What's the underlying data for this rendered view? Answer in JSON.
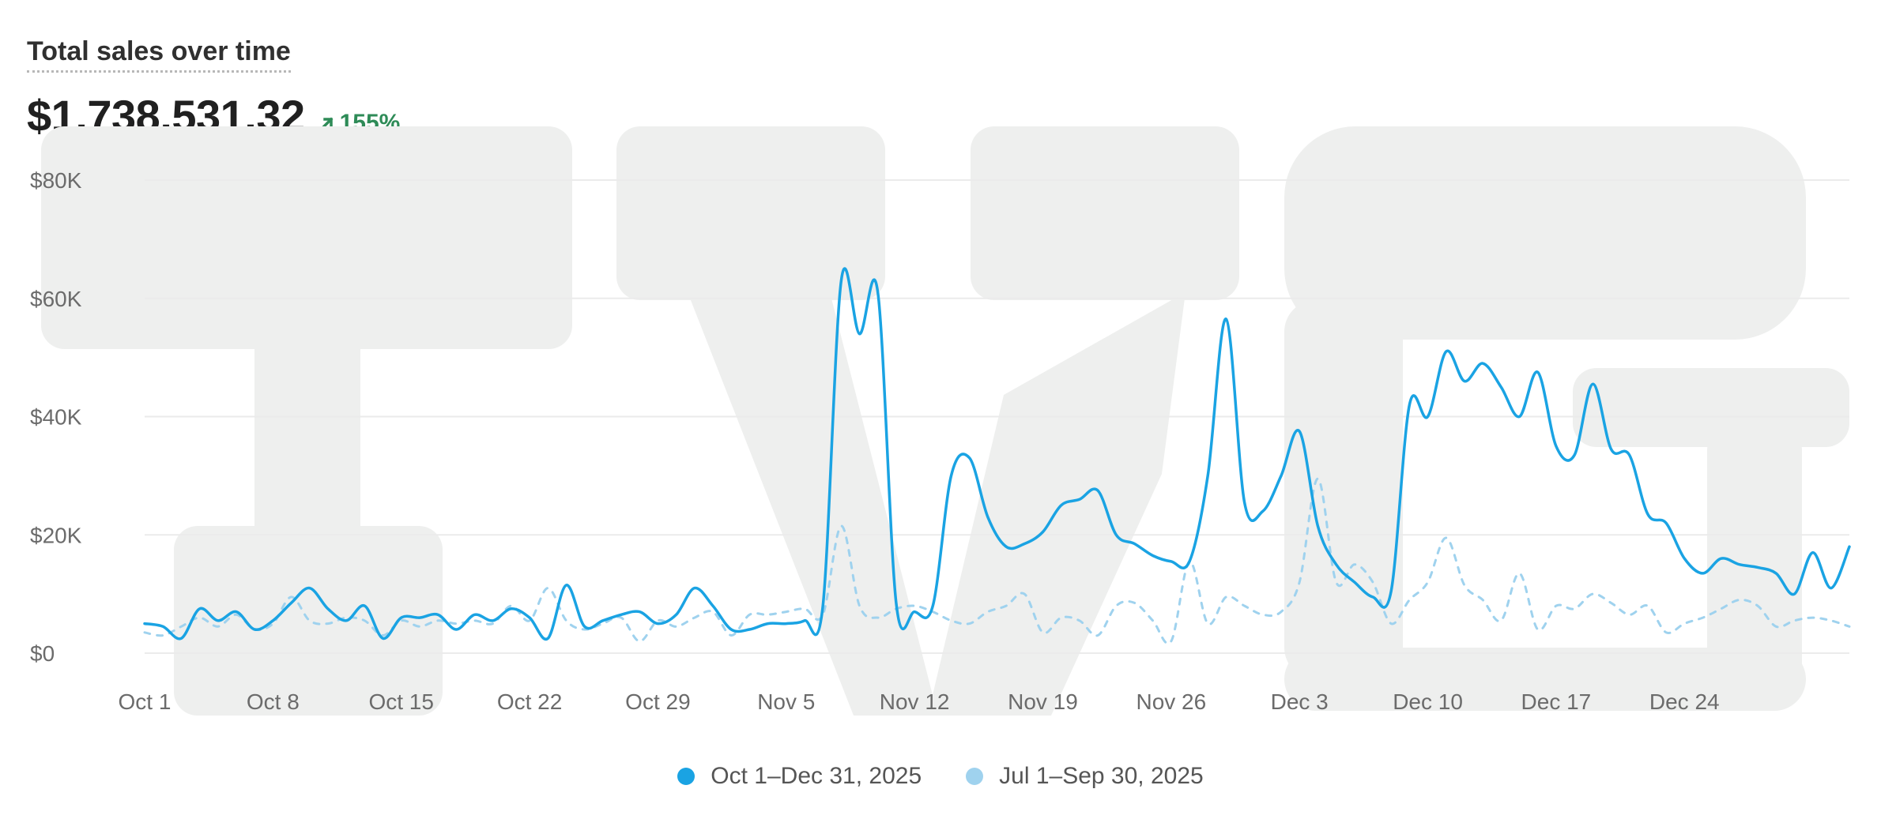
{
  "card": {
    "title": "Total sales over time",
    "total": "$1,738,531.32",
    "change": "155%",
    "change_color": "#2e8b57"
  },
  "colors": {
    "current": "#1aa3e3",
    "previous": "#9fd2ee",
    "grid": "#ebebeb",
    "watermark": "#eeefee"
  },
  "chart_data": {
    "type": "line",
    "ylim": [
      0,
      80000
    ],
    "yticks": [
      "$0",
      "$20K",
      "$40K",
      "$60K",
      "$80K"
    ],
    "xticks": [
      "Oct 1",
      "Oct 8",
      "Oct 15",
      "Oct 22",
      "Oct 29",
      "Nov 5",
      "Nov 12",
      "Nov 19",
      "Nov 26",
      "Dec 3",
      "Dec 10",
      "Dec 17",
      "Dec 24"
    ],
    "grid": true,
    "legend_position": "bottom",
    "series": [
      {
        "name": "Oct 1–Dec 31, 2025",
        "style": "solid",
        "values": [
          5000,
          4500,
          2500,
          7500,
          5500,
          7000,
          4000,
          5500,
          8500,
          11000,
          7500,
          5500,
          8000,
          2500,
          6000,
          6000,
          6500,
          4000,
          6500,
          5500,
          7500,
          6000,
          2500,
          11500,
          4500,
          5500,
          6500,
          7000,
          5000,
          6500,
          11000,
          8000,
          4000,
          4000,
          5000,
          5000,
          5500,
          8000,
          63000,
          54000,
          61000,
          8500,
          7000,
          8000,
          30000,
          33000,
          23000,
          18000,
          18500,
          20500,
          25000,
          26000,
          27500,
          20000,
          18500,
          16500,
          15500,
          15500,
          30000,
          56500,
          25500,
          24000,
          30000,
          37500,
          21500,
          15000,
          12000,
          9500,
          10500,
          42000,
          40000,
          51000,
          46000,
          49000,
          45000,
          40000,
          47500,
          35000,
          33500,
          45500,
          34500,
          33500,
          23500,
          22000,
          16000,
          13500,
          16000,
          15000,
          14500,
          13500,
          10000,
          17000,
          11000,
          18000
        ]
      },
      {
        "name": "Jul 1–Sep 30, 2025",
        "style": "dashed",
        "values": [
          3500,
          3000,
          4500,
          6000,
          4500,
          6500,
          4000,
          5000,
          9500,
          5500,
          5000,
          6000,
          5500,
          3000,
          5500,
          4500,
          5500,
          5000,
          5500,
          5000,
          8000,
          5500,
          11000,
          5500,
          4000,
          5000,
          6000,
          2000,
          5500,
          4500,
          6000,
          7000,
          3000,
          6500,
          6500,
          7000,
          7500,
          6500,
          21500,
          8000,
          6000,
          7500,
          8000,
          7000,
          5500,
          5000,
          7000,
          8000,
          10000,
          3500,
          6000,
          5500,
          3000,
          8000,
          8500,
          5500,
          2000,
          15500,
          5000,
          9500,
          8000,
          6500,
          7000,
          12000,
          29500,
          12000,
          15000,
          12000,
          5000,
          9000,
          12000,
          19500,
          11500,
          9000,
          5500,
          13500,
          4000,
          8000,
          7500,
          10000,
          8500,
          6500,
          8000,
          3500,
          5000,
          6000,
          7500,
          9000,
          8000,
          4500,
          5500,
          6000,
          5500,
          4500
        ]
      }
    ]
  }
}
